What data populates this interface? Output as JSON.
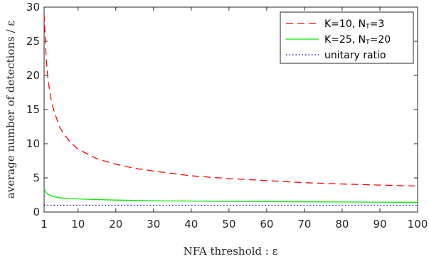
{
  "chart_data": {
    "type": "line",
    "xlabel": "NFA threshold : ε",
    "ylabel": "average number of detections / ε",
    "xlim": [
      1,
      100
    ],
    "ylim": [
      0,
      30
    ],
    "xticks": [
      1,
      10,
      20,
      30,
      40,
      50,
      60,
      70,
      80,
      90,
      100
    ],
    "yticks": [
      0,
      5,
      10,
      15,
      20,
      25,
      30
    ],
    "grid": false,
    "legend_position": "top-right",
    "series": [
      {
        "name": "K=10, N_T=3",
        "name_main": "K=10, N",
        "name_sub": "T",
        "name_tail": "=3",
        "color": "#ff0000",
        "style": "dashed",
        "x": [
          1,
          1.5,
          2,
          3,
          4,
          5,
          6,
          8,
          10,
          15,
          20,
          25,
          30,
          40,
          50,
          60,
          70,
          80,
          90,
          100
        ],
        "values": [
          29.0,
          23.0,
          19.5,
          16.0,
          14.2,
          12.6,
          11.6,
          10.2,
          9.2,
          7.8,
          7.0,
          6.4,
          6.0,
          5.3,
          4.9,
          4.6,
          4.3,
          4.1,
          3.95,
          3.8
        ]
      },
      {
        "name": "K=25, N_T=20",
        "name_main": "K=25, N",
        "name_sub": "T",
        "name_tail": "=20",
        "color": "#00ee00",
        "style": "solid",
        "x": [
          1,
          1.5,
          2,
          3,
          4,
          5,
          6,
          8,
          10,
          15,
          20,
          25,
          30,
          40,
          50,
          60,
          70,
          80,
          90,
          100
        ],
        "values": [
          3.4,
          2.9,
          2.6,
          2.35,
          2.2,
          2.1,
          2.05,
          1.98,
          1.92,
          1.82,
          1.75,
          1.7,
          1.66,
          1.6,
          1.55,
          1.52,
          1.49,
          1.47,
          1.45,
          1.43
        ]
      },
      {
        "name": "unitary ratio",
        "name_main": "unitary ratio",
        "name_sub": "",
        "name_tail": "",
        "color": "#0000cc",
        "style": "dotted",
        "x": [
          1,
          100
        ],
        "values": [
          1,
          1
        ]
      }
    ]
  }
}
